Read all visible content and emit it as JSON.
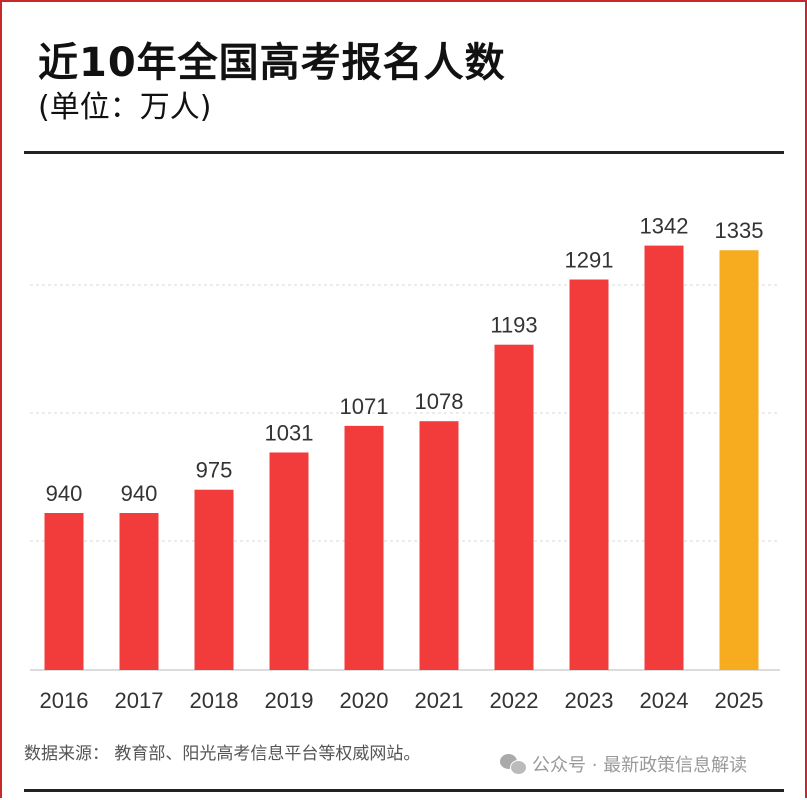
{
  "chart_data": {
    "type": "bar",
    "title": "近10年全国高考报名人数",
    "subtitle": "(单位：万人)",
    "categories": [
      "2016",
      "2017",
      "2018",
      "2019",
      "2020",
      "2021",
      "2022",
      "2023",
      "2024",
      "2025"
    ],
    "values": [
      940,
      940,
      975,
      1031,
      1071,
      1078,
      1193,
      1291,
      1342,
      1335
    ],
    "ylim": [
      704,
      1400
    ],
    "grid": true,
    "colors": {
      "default": "#f23c3c",
      "highlight": "#f7ab1f"
    },
    "highlight_category": "2025"
  },
  "footer": {
    "source": "数据来源：  教育部、阳光高考信息平台等权威网站。",
    "account": "公众号 · 最新政策信息解读",
    "account_icon": "wechat-icon"
  }
}
